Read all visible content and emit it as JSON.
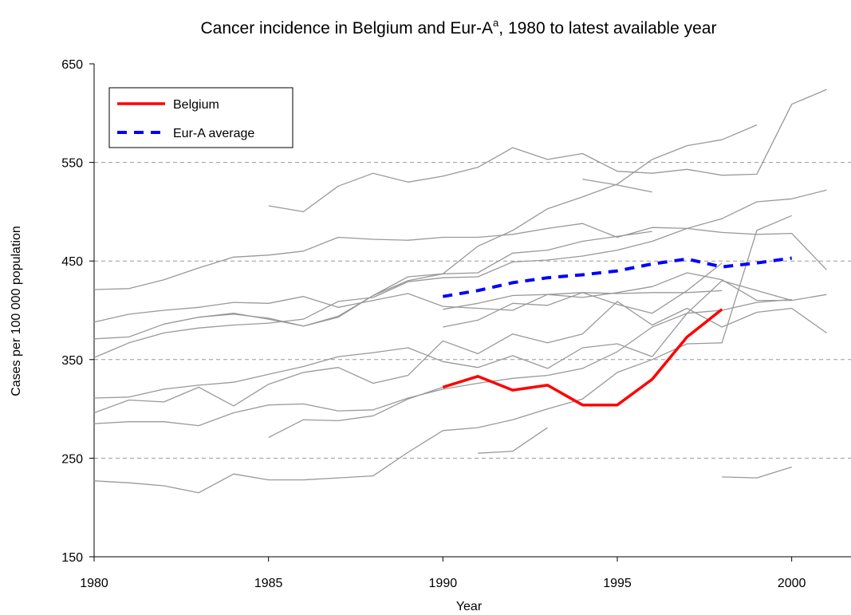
{
  "chart_data": {
    "type": "line",
    "title": "Cancer incidence in Belgium and Eur-A",
    "title_superscript": "a",
    "title_suffix": ", 1980 to latest available year",
    "xlabel": "Year",
    "ylabel": "Cases per 100 000 population",
    "x": [
      1980,
      1981,
      1982,
      1983,
      1984,
      1985,
      1986,
      1987,
      1988,
      1989,
      1990,
      1991,
      1992,
      1993,
      1994,
      1995,
      1996,
      1997,
      1998,
      1999,
      2000,
      2001
    ],
    "xlim": [
      1980,
      2001.7
    ],
    "xticks": [
      1980,
      1985,
      1990,
      1995,
      2000
    ],
    "ylim": [
      150,
      650
    ],
    "yticks": [
      150,
      250,
      350,
      450,
      550,
      650
    ],
    "grid": true,
    "legend": "upper left",
    "series": [
      {
        "color": "#999999",
        "values": [
          421,
          422,
          431,
          443,
          454,
          456,
          460,
          474,
          472,
          471,
          474,
          474,
          477,
          483,
          488,
          474,
          484,
          483,
          479,
          477,
          478,
          441
        ]
      },
      {
        "color": "#999999",
        "values": [
          null,
          null,
          null,
          null,
          null,
          506,
          500,
          526,
          539,
          530,
          536,
          545,
          565,
          553,
          559,
          541,
          539,
          543,
          537,
          538,
          609,
          624
        ]
      },
      {
        "color": "#999999",
        "values": [
          388,
          396,
          400,
          403,
          408,
          407,
          414,
          403,
          410,
          417,
          404,
          402,
          400,
          416,
          413,
          418,
          424,
          438,
          431,
          410,
          410,
          416
        ]
      },
      {
        "color": "#999999",
        "values": [
          371,
          373,
          386,
          393,
          396,
          392,
          384,
          394,
          415,
          434,
          437,
          465,
          481,
          503,
          515,
          528,
          553,
          567,
          573,
          588,
          null,
          null
        ]
      },
      {
        "color": "#999999",
        "values": [
          352,
          367,
          377,
          382,
          385,
          387,
          391,
          409,
          413,
          429,
          433,
          434,
          449,
          451,
          455,
          461,
          470,
          483,
          493,
          510,
          513,
          522
        ]
      },
      {
        "color": "#999999",
        "values": [
          311,
          312,
          320,
          324,
          327,
          335,
          343,
          353,
          357,
          362,
          348,
          342,
          354,
          341,
          362,
          366,
          353,
          397,
          430,
          420,
          410,
          null
        ]
      },
      {
        "color": "#999999",
        "values": [
          296,
          309,
          307,
          322,
          303,
          325,
          337,
          342,
          326,
          334,
          369,
          356,
          376,
          367,
          376,
          409,
          385,
          402,
          383,
          398,
          402,
          377
        ]
      },
      {
        "color": "#999999",
        "values": [
          285,
          287,
          287,
          283,
          296,
          304,
          305,
          298,
          299,
          311,
          320,
          326,
          331,
          334,
          341,
          358,
          383,
          397,
          400,
          408,
          411,
          null
        ]
      },
      {
        "color": "#999999",
        "values": [
          227,
          225,
          222,
          215,
          234,
          228,
          228,
          230,
          232,
          256,
          278,
          281,
          289,
          300,
          310,
          337,
          350,
          366,
          367,
          481,
          496,
          null
        ]
      },
      {
        "color": "#999999",
        "values": [
          null,
          null,
          null,
          null,
          null,
          null,
          null,
          null,
          null,
          null,
          401,
          407,
          415,
          416,
          418,
          417,
          418,
          418,
          420,
          null,
          null,
          null
        ]
      },
      {
        "color": "#999999",
        "values": [
          null,
          null,
          null,
          null,
          null,
          271,
          289,
          288,
          293,
          310,
          322,
          null,
          null,
          null,
          null,
          null,
          null,
          null,
          null,
          null,
          null,
          null
        ]
      },
      {
        "color": "#999999",
        "values": [
          null,
          null,
          null,
          null,
          null,
          null,
          null,
          null,
          null,
          null,
          null,
          255,
          257,
          281,
          null,
          null,
          null,
          null,
          null,
          null,
          null,
          null
        ]
      },
      {
        "color": "#999999",
        "values": [
          null,
          null,
          null,
          null,
          null,
          null,
          null,
          null,
          null,
          null,
          null,
          null,
          null,
          null,
          null,
          null,
          null,
          null,
          231,
          230,
          241,
          null
        ]
      },
      {
        "color": "#999999",
        "values": [
          null,
          null,
          null,
          393,
          397,
          391,
          384,
          393,
          415,
          430,
          437,
          438,
          458,
          461,
          470,
          475,
          480,
          null,
          null,
          null,
          null,
          null
        ]
      },
      {
        "color": "#999999",
        "values": [
          null,
          null,
          null,
          null,
          null,
          null,
          null,
          null,
          null,
          null,
          383,
          390,
          407,
          405,
          418,
          406,
          397,
          420,
          448,
          null,
          null,
          null
        ]
      },
      {
        "color": "#999999",
        "values": [
          null,
          null,
          null,
          null,
          null,
          null,
          null,
          null,
          null,
          null,
          null,
          null,
          null,
          null,
          533,
          527,
          520,
          null,
          null,
          null,
          null,
          null
        ]
      },
      {
        "name": "Belgium",
        "color": "#ff0000",
        "width": 3.5,
        "values": [
          null,
          null,
          null,
          null,
          null,
          null,
          null,
          null,
          null,
          null,
          322,
          333,
          319,
          324,
          304,
          304,
          330,
          373,
          401,
          null,
          null,
          null
        ]
      },
      {
        "name": "Eur-A average",
        "color": "#0000ff",
        "width": 4,
        "dash": true,
        "values": [
          null,
          null,
          null,
          null,
          null,
          null,
          null,
          null,
          null,
          null,
          414,
          420,
          428,
          433,
          436,
          440,
          447,
          452,
          444,
          448,
          453,
          null
        ]
      }
    ]
  }
}
